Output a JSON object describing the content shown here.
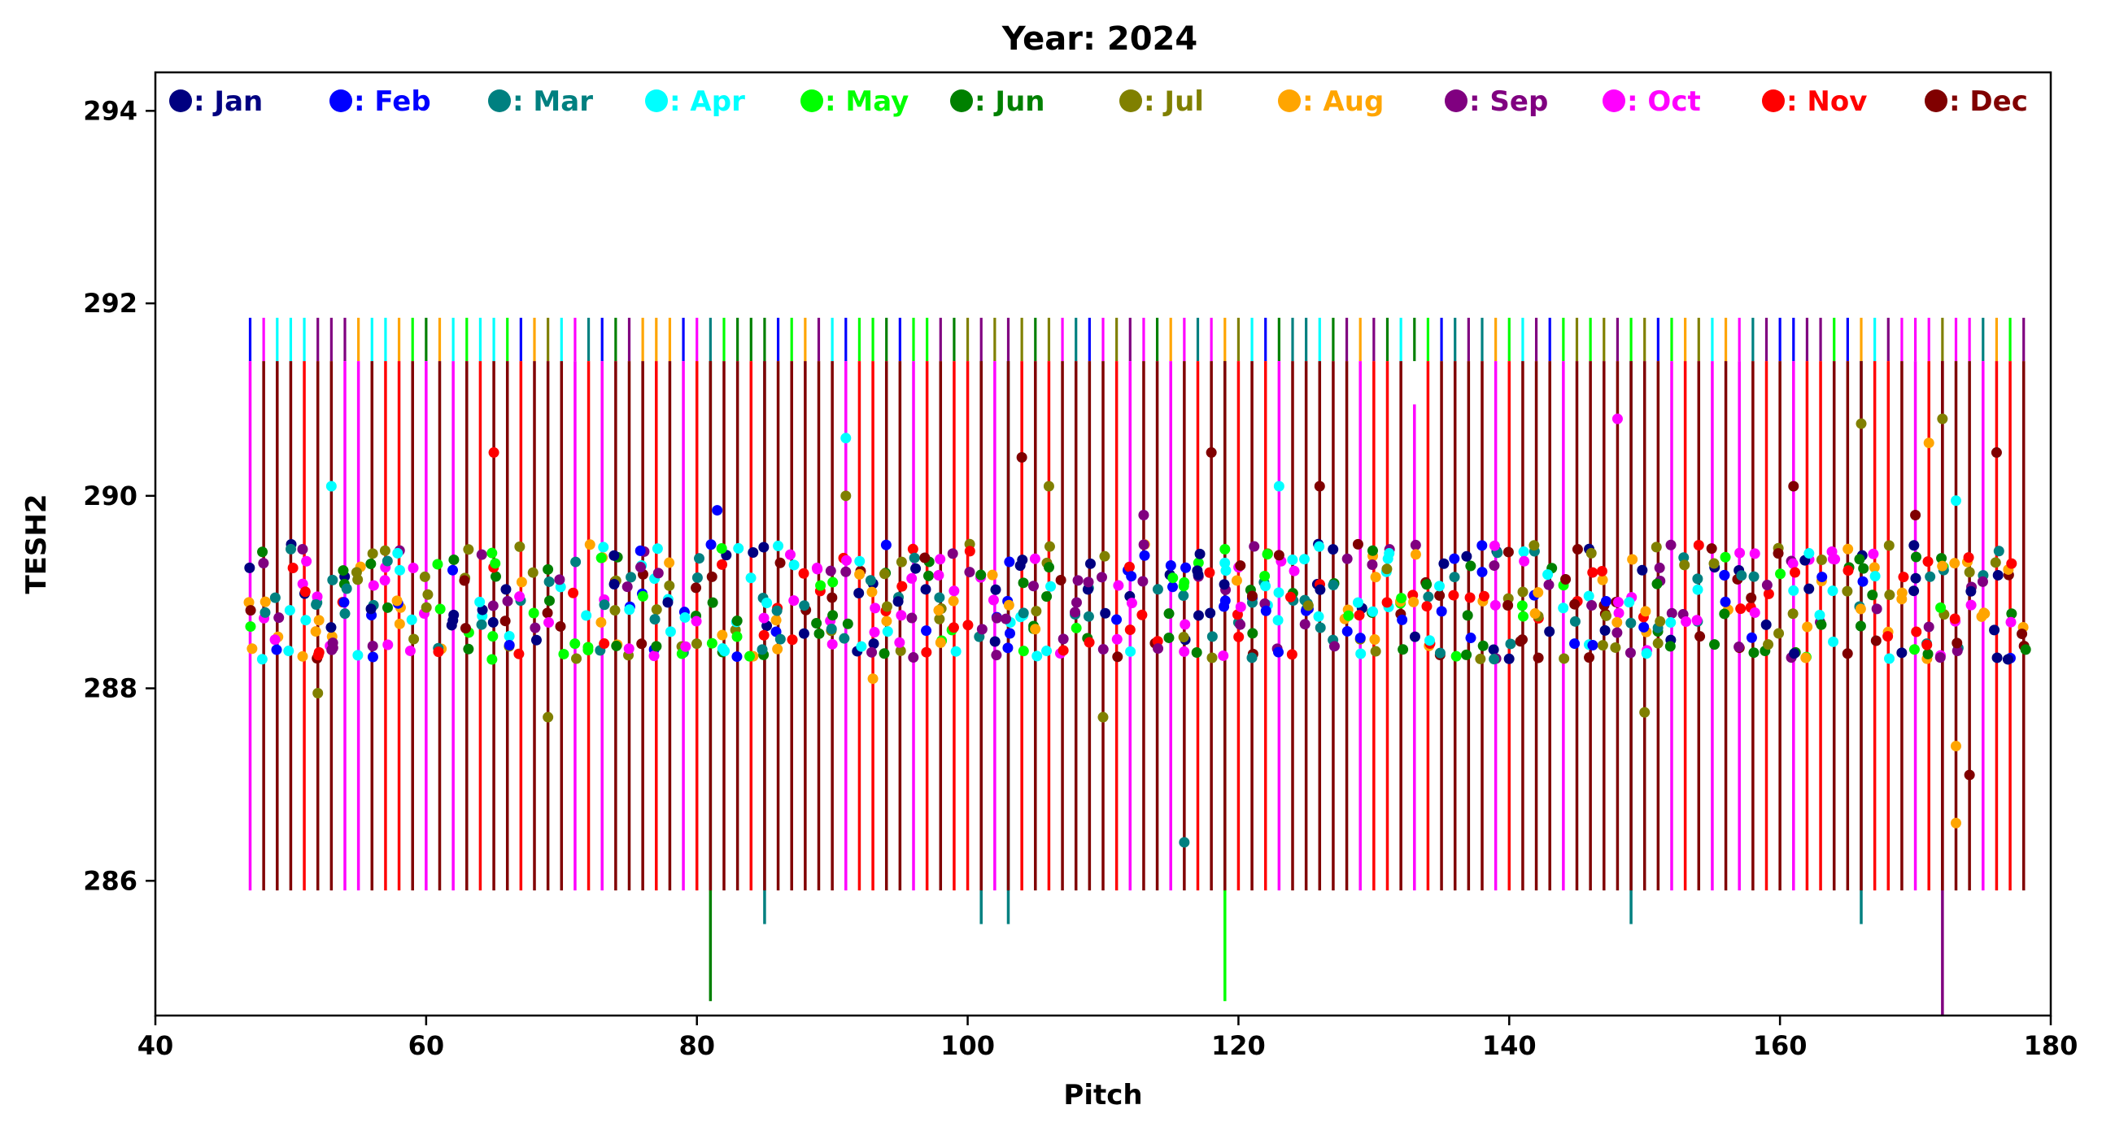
{
  "chart_data": {
    "type": "scatter",
    "title": "Year: 2024",
    "xlabel": "Pitch",
    "ylabel": "TESH2",
    "xlim": [
      40,
      180
    ],
    "ylim": [
      284.6,
      294.4
    ],
    "xticks": [
      "40",
      "60",
      "80",
      "100",
      "120",
      "140",
      "160",
      "180"
    ],
    "yticks": [
      "286",
      "288",
      "290",
      "292",
      "294"
    ],
    "grid": false,
    "legend_position": "top",
    "series": [
      {
        "name": ": Jan",
        "color": "#000080"
      },
      {
        "name": ": Feb",
        "color": "#0000FF"
      },
      {
        "name": ": Mar",
        "color": "#008080"
      },
      {
        "name": ": Apr",
        "color": "#00FFFF"
      },
      {
        "name": ": May",
        "color": "#00FF00"
      },
      {
        "name": ": Jun",
        "color": "#008000"
      },
      {
        "name": ": Jul",
        "color": "#808000"
      },
      {
        "name": ": Aug",
        "color": "#FFA500"
      },
      {
        "name": ": Sep",
        "color": "#800080"
      },
      {
        "name": ": Oct",
        "color": "#FF00FF"
      },
      {
        "name": ": Nov",
        "color": "#FF0000"
      },
      {
        "name": ": Dec",
        "color": "#800000"
      }
    ],
    "typical_range": {
      "y_low": 285.9,
      "y_high": 291.4
    },
    "typical_point_band": [
      288.3,
      289.5
    ],
    "outlier_points": [
      {
        "x": 52,
        "y": 287.95,
        "series": ": Jul"
      },
      {
        "x": 53,
        "y": 290.1,
        "series": ": Apr"
      },
      {
        "x": 65,
        "y": 290.45,
        "series": ": Nov"
      },
      {
        "x": 69,
        "y": 287.7,
        "series": ": Jul"
      },
      {
        "x": 81.5,
        "y": 289.85,
        "series": ": Feb"
      },
      {
        "x": 91,
        "y": 290.6,
        "series": ": Apr"
      },
      {
        "x": 91,
        "y": 290.0,
        "series": ": Jul"
      },
      {
        "x": 93,
        "y": 288.1,
        "series": ": Aug"
      },
      {
        "x": 104,
        "y": 290.4,
        "series": ": Dec"
      },
      {
        "x": 106,
        "y": 290.1,
        "series": ": Jul"
      },
      {
        "x": 110,
        "y": 287.7,
        "series": ": Jul"
      },
      {
        "x": 113,
        "y": 289.8,
        "series": ": Sep"
      },
      {
        "x": 116,
        "y": 286.4,
        "series": ": Mar"
      },
      {
        "x": 118,
        "y": 290.45,
        "series": ": Dec"
      },
      {
        "x": 123,
        "y": 290.1,
        "series": ": Apr"
      },
      {
        "x": 126,
        "y": 290.1,
        "series": ": Dec"
      },
      {
        "x": 148,
        "y": 290.8,
        "series": ": Oct"
      },
      {
        "x": 150,
        "y": 287.75,
        "series": ": Jul"
      },
      {
        "x": 161,
        "y": 290.1,
        "series": ": Dec"
      },
      {
        "x": 166,
        "y": 290.75,
        "series": ": Jul"
      },
      {
        "x": 170,
        "y": 289.8,
        "series": ": Dec"
      },
      {
        "x": 171,
        "y": 290.55,
        "series": ": Aug"
      },
      {
        "x": 172,
        "y": 290.8,
        "series": ": Jul"
      },
      {
        "x": 173,
        "y": 286.6,
        "series": ": Aug"
      },
      {
        "x": 173,
        "y": 287.4,
        "series": ": Aug"
      },
      {
        "x": 173,
        "y": 289.95,
        "series": ": Apr"
      },
      {
        "x": 174,
        "y": 287.1,
        "series": ": Dec"
      },
      {
        "x": 176,
        "y": 290.45,
        "series": ": Dec"
      }
    ],
    "extended_lines": [
      {
        "x": 81,
        "y_low": 284.75,
        "series": ": Jun"
      },
      {
        "x": 85,
        "y_low": 285.55,
        "series": ": Mar"
      },
      {
        "x": 101,
        "y_low": 285.55,
        "series": ": Mar"
      },
      {
        "x": 103,
        "y_low": 285.55,
        "series": ": Mar"
      },
      {
        "x": 119,
        "y_low": 284.75,
        "series": ": May"
      },
      {
        "x": 133,
        "y_high": 290.95,
        "series": ": Oct"
      },
      {
        "x": 149,
        "y_low": 285.55,
        "series": ": Mar"
      },
      {
        "x": 166,
        "y_low": 285.55,
        "series": ": Mar"
      },
      {
        "x": 172,
        "y_low": 284.6,
        "series": ": Sep"
      }
    ]
  }
}
